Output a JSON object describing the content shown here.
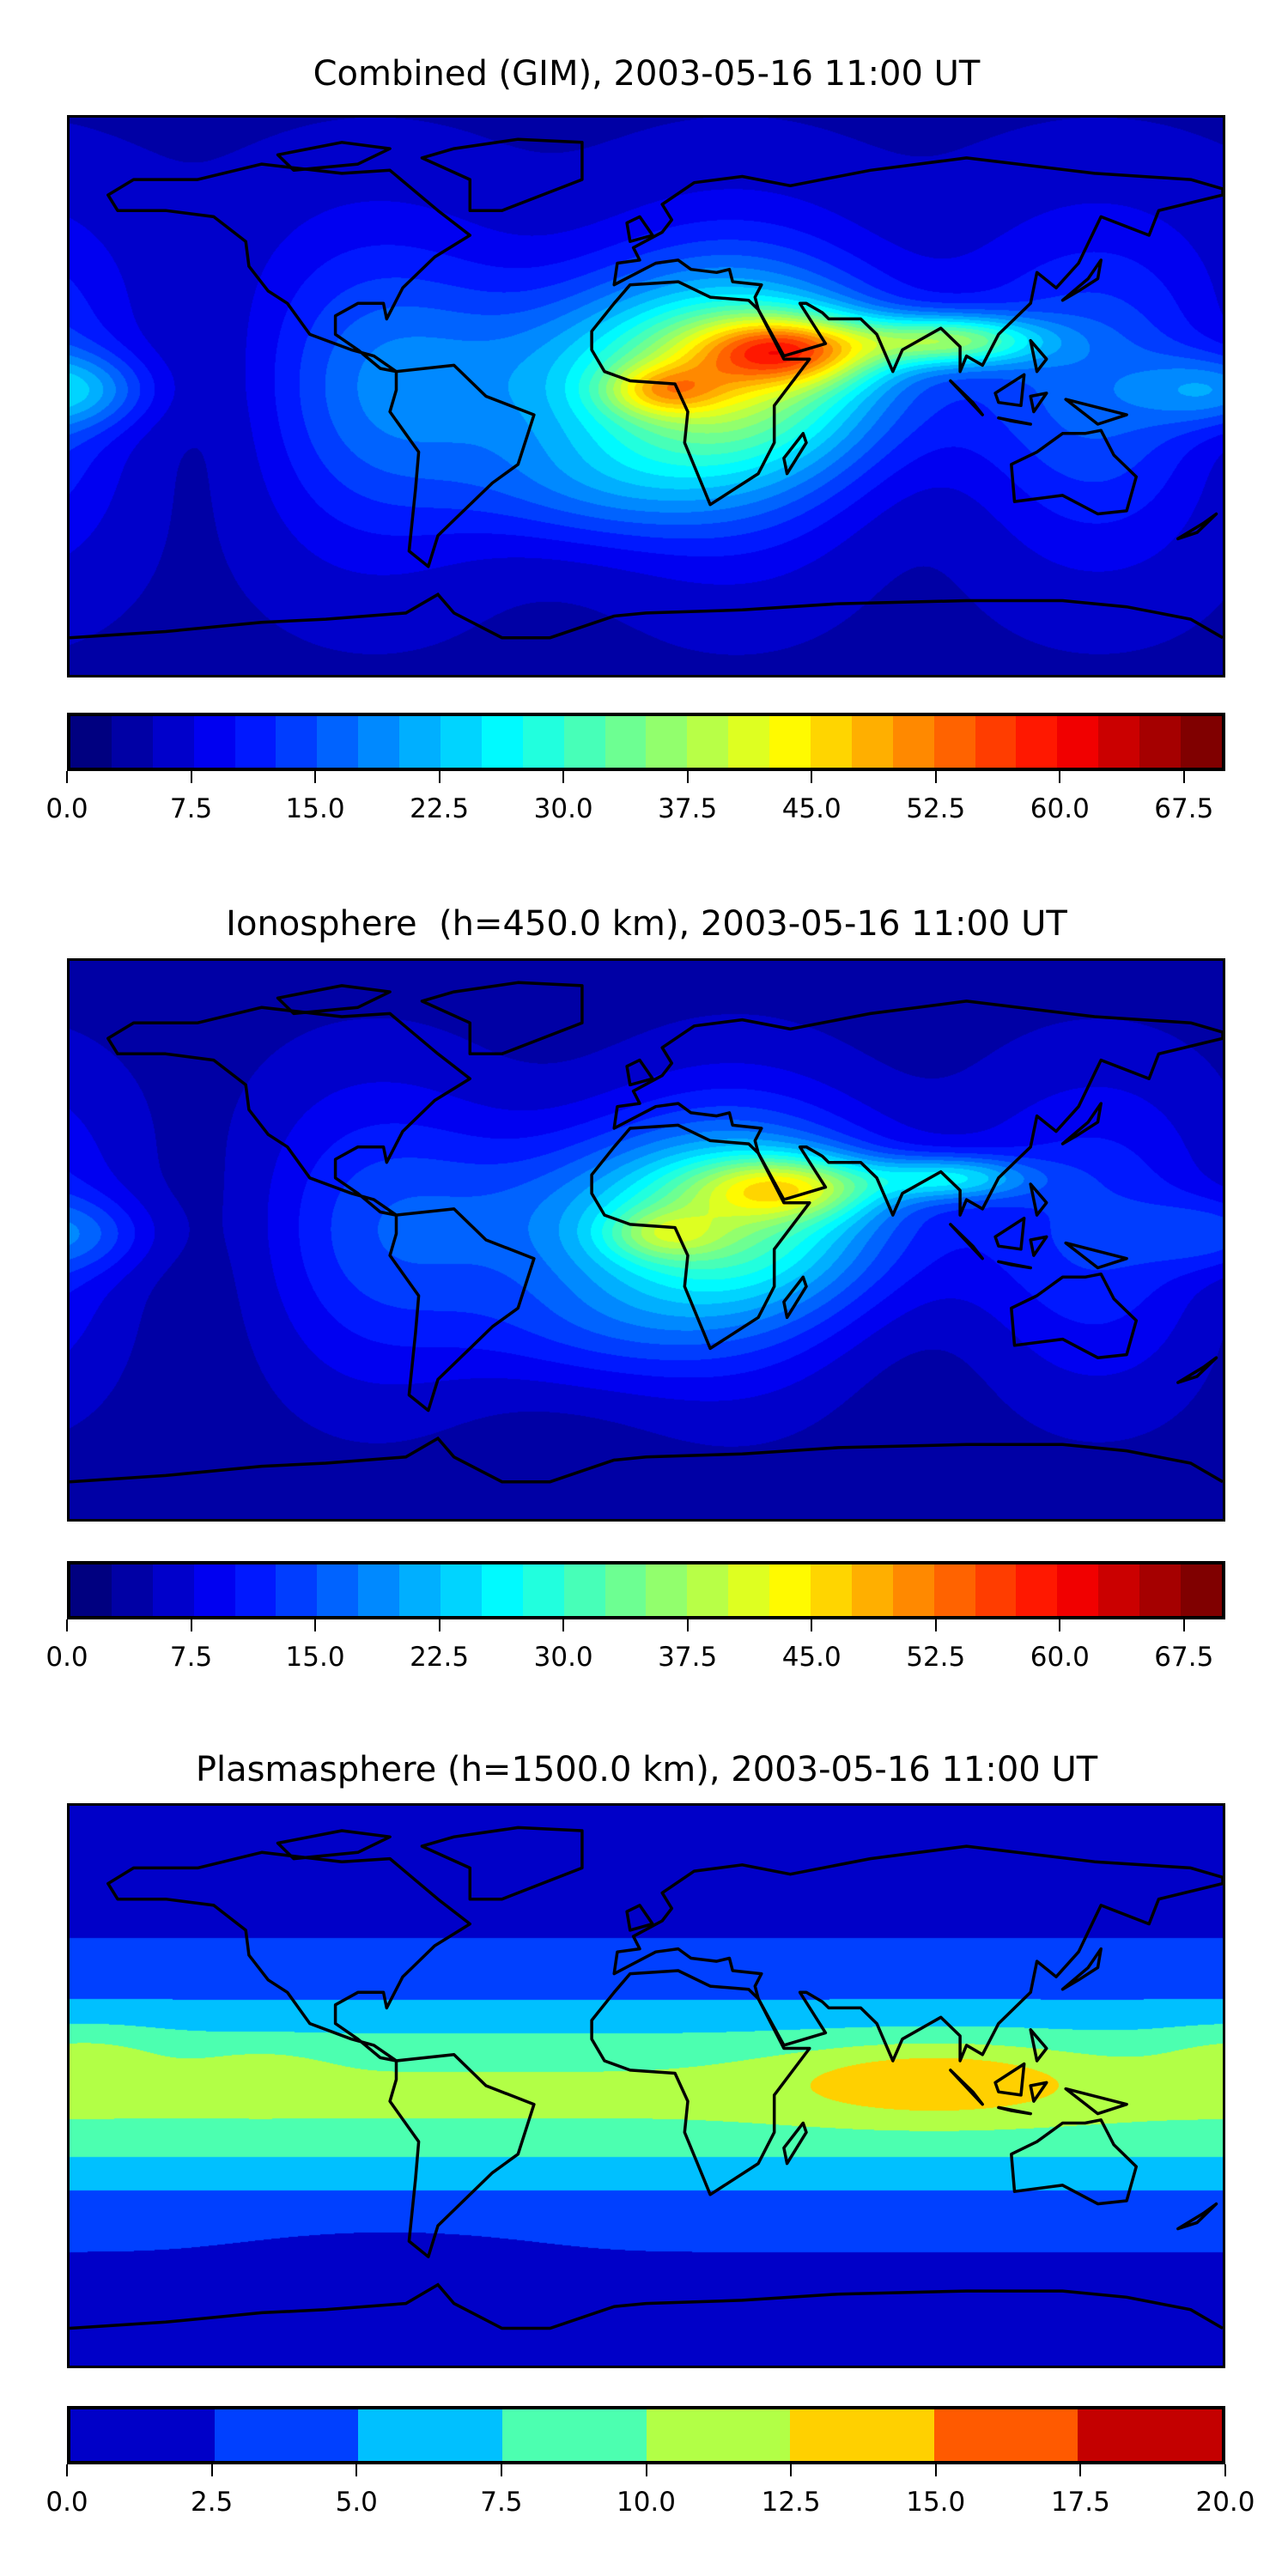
{
  "chart_data": [
    {
      "type": "heatmap",
      "title": "Combined (GIM), 2003-05-16 11:00 UT",
      "field": "combined",
      "colormap": "jet",
      "levels": {
        "min": 0.0,
        "max": 70.0,
        "step": 2.5
      },
      "colorbar_ticks": [
        "0.0",
        "7.5",
        "15.0",
        "22.5",
        "30.0",
        "37.5",
        "45.0",
        "52.5",
        "60.0",
        "67.5"
      ],
      "colorbar_tick_values": [
        0,
        7.5,
        15,
        22.5,
        30,
        37.5,
        45,
        52.5,
        60,
        67.5
      ],
      "peak_region": "northern Africa / Arabia / India, max ~67.5"
    },
    {
      "type": "heatmap",
      "title": "Ionosphere  (h=450.0 km), 2003-05-16 11:00 UT",
      "field": "ionosphere",
      "colormap": "jet",
      "levels": {
        "min": 0.0,
        "max": 70.0,
        "step": 2.5
      },
      "colorbar_ticks": [
        "0.0",
        "7.5",
        "15.0",
        "22.5",
        "30.0",
        "37.5",
        "45.0",
        "52.5",
        "60.0",
        "67.5"
      ],
      "colorbar_tick_values": [
        0,
        7.5,
        15,
        22.5,
        30,
        37.5,
        45,
        52.5,
        60,
        67.5
      ],
      "peak_region": "Arabia, max ~55"
    },
    {
      "type": "heatmap",
      "title": "Plasmasphere (h=1500.0 km), 2003-05-16 11:00 UT",
      "field": "plasmasphere",
      "colormap": "jet-8",
      "levels": {
        "min": 0.0,
        "max": 20.0,
        "step": 2.5
      },
      "colors": [
        "#0000c8",
        "#0040ff",
        "#00c0ff",
        "#4cffb0",
        "#b2ff46",
        "#ffd000",
        "#ff5a00",
        "#c40000"
      ],
      "colorbar_ticks": [
        "0.0",
        "2.5",
        "5.0",
        "7.5",
        "10.0",
        "12.5",
        "15.0",
        "17.5",
        "20.0"
      ],
      "colorbar_tick_values": [
        0,
        2.5,
        5,
        7.5,
        10,
        12.5,
        15,
        17.5,
        20
      ],
      "peak_region": "Indian Ocean / Indonesia, 12.5-15.0"
    }
  ]
}
